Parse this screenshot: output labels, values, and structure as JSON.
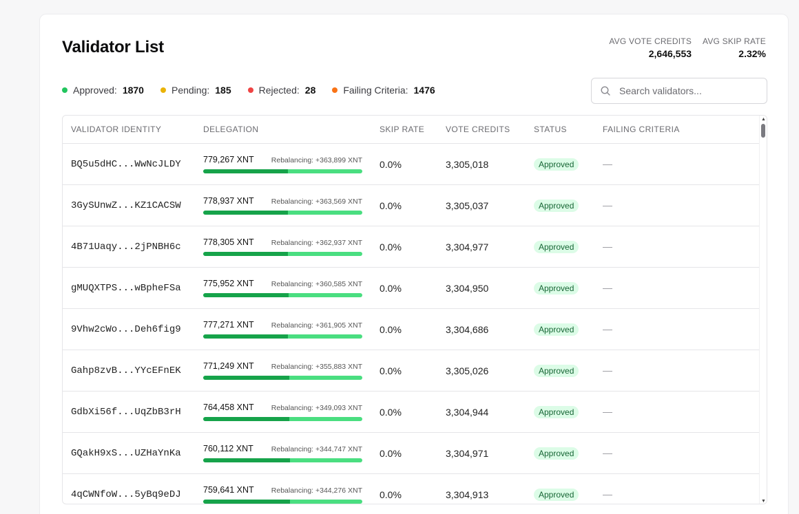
{
  "title": "Validator List",
  "stats": [
    {
      "label": "AVG VOTE CREDITS",
      "value": "2,646,553"
    },
    {
      "label": "AVG SKIP RATE",
      "value": "2.32%"
    }
  ],
  "legend": [
    {
      "label": "Approved:",
      "count": "1870",
      "color": "#22c55e"
    },
    {
      "label": "Pending:",
      "count": "185",
      "color": "#eab308"
    },
    {
      "label": "Rejected:",
      "count": "28",
      "color": "#ef4444"
    },
    {
      "label": "Failing Criteria:",
      "count": "1476",
      "color": "#f97316"
    }
  ],
  "search": {
    "placeholder": "Search validators..."
  },
  "columns": [
    "VALIDATOR IDENTITY",
    "DELEGATION",
    "SKIP RATE",
    "VOTE CREDITS",
    "STATUS",
    "FAILING CRITERIA"
  ],
  "rows": [
    {
      "id": "BQ5u5dHC...WwNcJLDY",
      "delegation": "779,267 XNT",
      "rebalancing": "Rebalancing: +363,899 XNT",
      "fill": 0.533,
      "skip": "0.0%",
      "vote": "3,305,018",
      "status": "Approved",
      "failing": "—"
    },
    {
      "id": "3GySUnwZ...KZ1CACSW",
      "delegation": "778,937 XNT",
      "rebalancing": "Rebalancing: +363,569 XNT",
      "fill": 0.533,
      "skip": "0.0%",
      "vote": "3,305,037",
      "status": "Approved",
      "failing": "—"
    },
    {
      "id": "4B71Uaqy...2jPNBH6c",
      "delegation": "778,305 XNT",
      "rebalancing": "Rebalancing: +362,937 XNT",
      "fill": 0.534,
      "skip": "0.0%",
      "vote": "3,304,977",
      "status": "Approved",
      "failing": "—"
    },
    {
      "id": "gMUQXTPS...wBpheFSa",
      "delegation": "775,952 XNT",
      "rebalancing": "Rebalancing: +360,585 XNT",
      "fill": 0.535,
      "skip": "0.0%",
      "vote": "3,304,950",
      "status": "Approved",
      "failing": "—"
    },
    {
      "id": "9Vhw2cWo...Deh6fig9",
      "delegation": "777,271 XNT",
      "rebalancing": "Rebalancing: +361,905 XNT",
      "fill": 0.534,
      "skip": "0.0%",
      "vote": "3,304,686",
      "status": "Approved",
      "failing": "—"
    },
    {
      "id": "Gahp8zvB...YYcEFnEK",
      "delegation": "771,249 XNT",
      "rebalancing": "Rebalancing: +355,883 XNT",
      "fill": 0.539,
      "skip": "0.0%",
      "vote": "3,305,026",
      "status": "Approved",
      "failing": "—"
    },
    {
      "id": "GdbXi56f...UqZbB3rH",
      "delegation": "764,458 XNT",
      "rebalancing": "Rebalancing: +349,093 XNT",
      "fill": 0.543,
      "skip": "0.0%",
      "vote": "3,304,944",
      "status": "Approved",
      "failing": "—"
    },
    {
      "id": "GQakH9xS...UZHaYnKa",
      "delegation": "760,112 XNT",
      "rebalancing": "Rebalancing: +344,747 XNT",
      "fill": 0.546,
      "skip": "0.0%",
      "vote": "3,304,971",
      "status": "Approved",
      "failing": "—"
    },
    {
      "id": "4qCWNfoW...5yBq9eDJ",
      "delegation": "759,641 XNT",
      "rebalancing": "Rebalancing: +344,276 XNT",
      "fill": 0.547,
      "skip": "0.0%",
      "vote": "3,304,913",
      "status": "Approved",
      "failing": "—"
    }
  ]
}
